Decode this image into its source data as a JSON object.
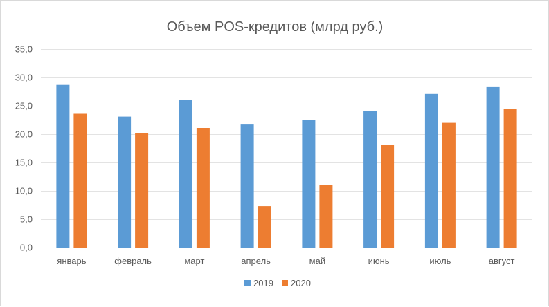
{
  "chart_data": {
    "type": "bar",
    "title": "Объем POS-кредитов (млрд руб.)",
    "xlabel": "",
    "ylabel": "",
    "categories": [
      "январь",
      "февраль",
      "март",
      "апрель",
      "май",
      "июнь",
      "июль",
      "август"
    ],
    "series": [
      {
        "name": "2019",
        "color": "#5b9bd5",
        "values": [
          28.7,
          23.1,
          26.0,
          21.7,
          22.5,
          24.1,
          27.1,
          28.3
        ]
      },
      {
        "name": "2020",
        "color": "#ed7d31",
        "values": [
          23.6,
          20.2,
          21.1,
          7.3,
          11.1,
          18.1,
          22.0,
          24.5
        ]
      }
    ],
    "ylim": [
      0,
      35
    ],
    "yticks": [
      "0,0",
      "5,0",
      "10,0",
      "15,0",
      "20,0",
      "25,0",
      "30,0",
      "35,0"
    ],
    "grid": true,
    "legend": "bottom-center"
  }
}
